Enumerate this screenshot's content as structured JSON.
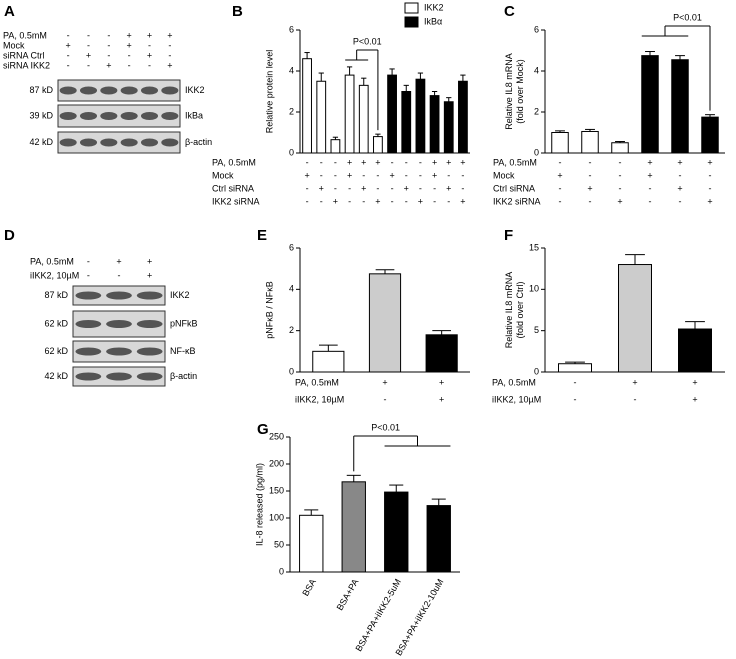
{
  "chart_data": [
    {
      "panel": "B",
      "type": "bar",
      "ylabel": "Relative protein level",
      "annotation": "P<0.01",
      "categories": [
        null,
        null,
        null,
        null,
        null,
        null,
        null,
        null,
        null,
        null,
        null,
        null
      ],
      "series": [
        {
          "name": "IKK2",
          "color": "#ffffff",
          "values": [
            4.6,
            3.5,
            0.65,
            3.8,
            3.3,
            0.8,
            null,
            null,
            null,
            null,
            null,
            null
          ],
          "errors": [
            0.3,
            0.4,
            0.12,
            0.4,
            0.35,
            0.12,
            null,
            null,
            null,
            null,
            null,
            null
          ]
        },
        {
          "name": "IkBα",
          "color": "#000000",
          "values": [
            null,
            null,
            null,
            null,
            null,
            null,
            3.8,
            3.0,
            3.6,
            2.8,
            2.5,
            3.5
          ],
          "errors": [
            null,
            null,
            null,
            null,
            null,
            null,
            0.3,
            0.3,
            0.3,
            0.2,
            0.2,
            0.3
          ]
        }
      ],
      "ylim": [
        0,
        6
      ],
      "yticks": [
        0,
        2,
        4,
        6
      ],
      "conditions": [
        {
          "label": "PA, 0.5mM",
          "signs": [
            "-",
            "-",
            "-",
            "+",
            "+",
            "+",
            "-",
            "-",
            "-",
            "+",
            "+",
            "+"
          ]
        },
        {
          "label": "Mock",
          "signs": [
            "+",
            "-",
            "-",
            "+",
            "-",
            "-",
            "+",
            "-",
            "-",
            "+",
            "-",
            "-"
          ]
        },
        {
          "label": "Ctrl siRNA",
          "signs": [
            "-",
            "+",
            "-",
            "-",
            "+",
            "-",
            "-",
            "+",
            "-",
            "-",
            "+",
            "-"
          ]
        },
        {
          "label": "IKK2 siRNA",
          "signs": [
            "-",
            "-",
            "+",
            "-",
            "-",
            "+",
            "-",
            "-",
            "+",
            "-",
            "-",
            "+"
          ]
        }
      ]
    },
    {
      "panel": "C",
      "type": "bar",
      "ylabel": [
        "Relative IL8 mRNA",
        "(fold over Mock)"
      ],
      "annotation": "P<0.01",
      "categories": [
        null,
        null,
        null,
        null,
        null,
        null
      ],
      "values": [
        1.0,
        1.05,
        0.5,
        4.75,
        4.55,
        1.75
      ],
      "errors": [
        0.08,
        0.1,
        0.06,
        0.2,
        0.2,
        0.12
      ],
      "colors": [
        "#ffffff",
        "#ffffff",
        "#ffffff",
        "#000000",
        "#000000",
        "#000000"
      ],
      "ylim": [
        0,
        6
      ],
      "yticks": [
        0,
        2,
        4,
        6
      ],
      "conditions": [
        {
          "label": "PA, 0.5mM",
          "signs": [
            "-",
            "-",
            "-",
            "+",
            "+",
            "+"
          ]
        },
        {
          "label": "Mock",
          "signs": [
            "+",
            "-",
            "-",
            "+",
            "-",
            "-"
          ]
        },
        {
          "label": "Ctrl siRNA",
          "signs": [
            "-",
            "+",
            "-",
            "-",
            "+",
            "-"
          ]
        },
        {
          "label": "IKK2 siRNA",
          "signs": [
            "-",
            "-",
            "+",
            "-",
            "-",
            "+"
          ]
        }
      ]
    },
    {
      "panel": "E",
      "type": "bar",
      "ylabel": "pNFκB / NFκB",
      "categories": [
        null,
        null,
        null
      ],
      "values": [
        1.0,
        4.75,
        1.8
      ],
      "errors": [
        0.3,
        0.2,
        0.2
      ],
      "colors": [
        "#ffffff",
        "#cccccc",
        "#000000"
      ],
      "ylim": [
        0,
        6
      ],
      "yticks": [
        0,
        2,
        4,
        6
      ],
      "conditions": [
        {
          "label": "PA, 0.5mM",
          "signs": [
            "-",
            "+",
            "+"
          ]
        },
        {
          "label": "iIKK2, 10µM",
          "signs": [
            "-",
            "-",
            "+"
          ]
        }
      ]
    },
    {
      "panel": "F",
      "type": "bar",
      "ylabel": [
        "Relative IL8 mRNA",
        "(fold over Ctrl)"
      ],
      "categories": [
        null,
        null,
        null
      ],
      "values": [
        1.0,
        13.0,
        5.2
      ],
      "errors": [
        0.2,
        1.2,
        0.9
      ],
      "colors": [
        "#ffffff",
        "#cccccc",
        "#000000"
      ],
      "ylim": [
        0,
        15
      ],
      "yticks": [
        0,
        5,
        10,
        15
      ],
      "conditions": [
        {
          "label": "PA, 0.5mM",
          "signs": [
            "-",
            "+",
            "+"
          ]
        },
        {
          "label": "iIKK2, 10µM",
          "signs": [
            "-",
            "-",
            "+"
          ]
        }
      ]
    },
    {
      "panel": "G",
      "type": "bar",
      "ylabel": "IL-8 released (pg/ml)",
      "annotation": "P<0.01",
      "categories": [
        "BSA",
        "BSA+PA",
        "BSA+PA+iIKK2-5uM",
        "BSA+PA+iIKK2-10uM"
      ],
      "values": [
        105,
        167,
        148,
        123
      ],
      "errors": [
        10,
        12,
        13,
        12
      ],
      "colors": [
        "#ffffff",
        "#888888",
        "#000000",
        "#000000"
      ],
      "ylim": [
        0,
        250
      ],
      "yticks": [
        0,
        50,
        100,
        150,
        200,
        250
      ]
    }
  ],
  "blots": [
    {
      "panel": "A",
      "conditions": [
        {
          "label": "PA, 0.5mM",
          "signs": [
            "-",
            "-",
            "-",
            "+",
            "+",
            "+"
          ]
        },
        {
          "label": "Mock",
          "signs": [
            "+",
            "-",
            "-",
            "+",
            "-",
            "-"
          ]
        },
        {
          "label": "siRNA Ctrl",
          "signs": [
            "-",
            "+",
            "-",
            "-",
            "+",
            "-"
          ]
        },
        {
          "label": "siRNA IKK2",
          "signs": [
            "-",
            "-",
            "+",
            "-",
            "-",
            "+"
          ]
        }
      ],
      "rows": [
        {
          "size": "87 kD",
          "protein": "IKK2"
        },
        {
          "size": "39 kD",
          "protein": "IkBa"
        },
        {
          "size": "42 kD",
          "protein": "β-actin"
        }
      ]
    },
    {
      "panel": "D",
      "conditions": [
        {
          "label": "PA, 0.5mM",
          "signs": [
            "-",
            "+",
            "+"
          ]
        },
        {
          "label": "iIKK2, 10µM",
          "signs": [
            "-",
            "-",
            "+"
          ]
        }
      ],
      "rows": [
        {
          "size": "87 kD",
          "protein": "IKK2"
        },
        {
          "size": "62 kD",
          "protein": "pNFkB"
        },
        {
          "size": "62 kD",
          "protein": "NF-κB"
        },
        {
          "size": "42 kD",
          "protein": "β-actin"
        }
      ]
    }
  ]
}
